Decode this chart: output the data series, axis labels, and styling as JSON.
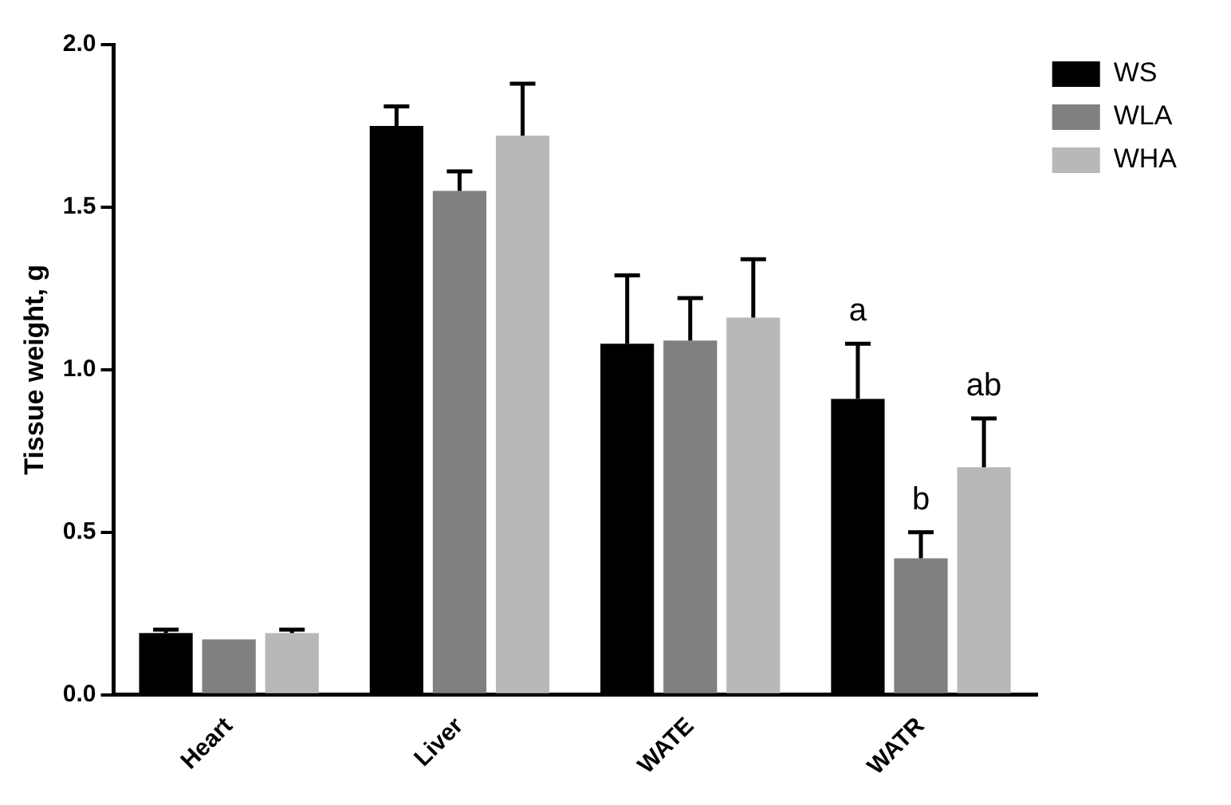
{
  "chart_data": {
    "type": "bar",
    "ylabel": "Tissue weight, g",
    "categories": [
      "Heart",
      "Liver",
      "WATE",
      "WATR"
    ],
    "series": [
      {
        "name": "WS",
        "color": "#000000",
        "values": [
          0.19,
          1.75,
          1.08,
          0.91
        ],
        "errors": [
          [
            0.19,
            0.2
          ],
          [
            1.75,
            1.81
          ],
          [
            1.08,
            1.29
          ],
          [
            0.91,
            1.08
          ]
        ]
      },
      {
        "name": "WLA",
        "color": "#808080",
        "values": [
          0.17,
          1.55,
          1.09,
          0.42
        ],
        "errors": [
          null,
          [
            1.55,
            1.61
          ],
          [
            1.09,
            1.22
          ],
          [
            0.42,
            0.5
          ]
        ]
      },
      {
        "name": "WHA",
        "color": "#b8b8b8",
        "values": [
          0.19,
          1.72,
          1.16,
          0.7
        ],
        "errors": [
          [
            0.19,
            0.2
          ],
          [
            1.72,
            1.88
          ],
          [
            1.16,
            1.34
          ],
          [
            0.7,
            0.85
          ]
        ]
      }
    ],
    "ylim": [
      0,
      2
    ],
    "yticks": [
      {
        "value": 0,
        "label": "0.0"
      },
      {
        "value": 0.5,
        "label": "0.5"
      },
      {
        "value": 1,
        "label": "1.0"
      },
      {
        "value": 1.5,
        "label": "1.5"
      },
      {
        "value": 2,
        "label": "2.0"
      }
    ],
    "grid": false,
    "legend": "top right",
    "annotations": [
      "a",
      "b",
      "ab"
    ]
  }
}
